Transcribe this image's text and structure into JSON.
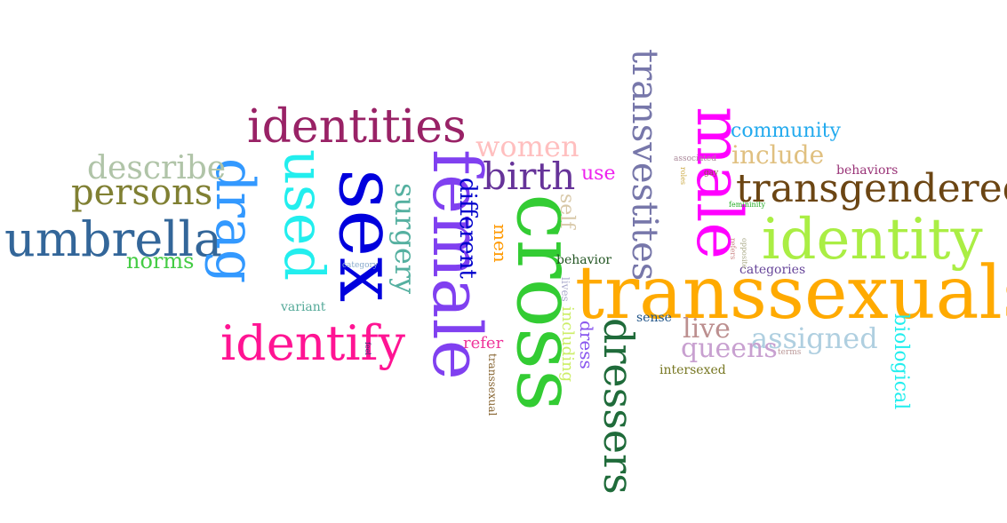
{
  "word_cloud": {
    "words": [
      {
        "text": "transsexuals",
        "color": "#FFAA00",
        "orientation": "horizontal"
      },
      {
        "text": "cross",
        "color": "#33CC33",
        "orientation": "vertical"
      },
      {
        "text": "female",
        "color": "#8040F0",
        "orientation": "vertical"
      },
      {
        "text": "sex",
        "color": "#0000DD",
        "orientation": "vertical"
      },
      {
        "text": "identity",
        "color": "#AAEE44",
        "orientation": "horizontal"
      },
      {
        "text": "male",
        "color": "#FF00FF",
        "orientation": "vertical"
      },
      {
        "text": "used",
        "color": "#22EEEE",
        "orientation": "vertical"
      },
      {
        "text": "umbrella",
        "color": "#336699",
        "orientation": "horizontal"
      },
      {
        "text": "identify",
        "color": "#FF1493",
        "orientation": "horizontal"
      },
      {
        "text": "drag",
        "color": "#3399FF",
        "orientation": "vertical"
      },
      {
        "text": "dressers",
        "color": "#1F6B3A",
        "orientation": "vertical"
      },
      {
        "text": "transvestites",
        "color": "#7777AA",
        "orientation": "vertical"
      },
      {
        "text": "identities",
        "color": "#992266",
        "orientation": "horizontal"
      },
      {
        "text": "transgendered",
        "color": "#6B4513",
        "orientation": "horizontal"
      },
      {
        "text": "persons",
        "color": "#808033",
        "orientation": "horizontal"
      },
      {
        "text": "birth",
        "color": "#663399",
        "orientation": "horizontal"
      },
      {
        "text": "describe",
        "color": "#B0C4A8",
        "orientation": "horizontal"
      },
      {
        "text": "surgery",
        "color": "#55B0A0",
        "orientation": "vertical"
      },
      {
        "text": "women",
        "color": "#FFBFBF",
        "orientation": "horizontal"
      },
      {
        "text": "different",
        "color": "#0000CC",
        "orientation": "vertical"
      },
      {
        "text": "assigned",
        "color": "#AFCFE0",
        "orientation": "horizontal"
      },
      {
        "text": "queens",
        "color": "#C8A0D0",
        "orientation": "horizontal"
      },
      {
        "text": "live",
        "color": "#BC8F8F",
        "orientation": "horizontal"
      },
      {
        "text": "include",
        "color": "#E0C080",
        "orientation": "horizontal"
      },
      {
        "text": "community",
        "color": "#22AAEE",
        "orientation": "horizontal"
      },
      {
        "text": "biological",
        "color": "#22EEEE",
        "orientation": "vertical"
      },
      {
        "text": "use",
        "color": "#EE22EE",
        "orientation": "horizontal"
      },
      {
        "text": "self",
        "color": "#D8C8A8",
        "orientation": "vertical"
      },
      {
        "text": "men",
        "color": "#FF9900",
        "orientation": "vertical"
      },
      {
        "text": "norms",
        "color": "#44CC44",
        "orientation": "horizontal"
      },
      {
        "text": "dress",
        "color": "#8855EE",
        "orientation": "vertical"
      },
      {
        "text": "including",
        "color": "#CCEE66",
        "orientation": "vertical"
      },
      {
        "text": "refer",
        "color": "#EE3399",
        "orientation": "horizontal"
      },
      {
        "text": "behaviors",
        "color": "#993377",
        "orientation": "horizontal"
      },
      {
        "text": "behavior",
        "color": "#225522",
        "orientation": "horizontal"
      },
      {
        "text": "categories",
        "color": "#664499",
        "orientation": "horizontal"
      },
      {
        "text": "intersexed",
        "color": "#777722",
        "orientation": "horizontal"
      },
      {
        "text": "sense",
        "color": "#225588",
        "orientation": "horizontal"
      },
      {
        "text": "variant",
        "color": "#55AA99",
        "orientation": "horizontal"
      },
      {
        "text": "transsexual",
        "color": "#886633",
        "orientation": "vertical"
      },
      {
        "text": "lives",
        "color": "#AAAACC",
        "orientation": "vertical"
      },
      {
        "text": "associated",
        "color": "#AA8899",
        "orientation": "horizontal"
      },
      {
        "text": "gay",
        "color": "#885544",
        "orientation": "horizontal"
      },
      {
        "text": "femininity",
        "color": "#22AA22",
        "orientation": "horizontal"
      },
      {
        "text": "roles",
        "color": "#CCAA44",
        "orientation": "vertical"
      },
      {
        "text": "refers",
        "color": "#CC8888",
        "orientation": "vertical"
      },
      {
        "text": "opposite",
        "color": "#AAAA88",
        "orientation": "vertical"
      },
      {
        "text": "terms",
        "color": "#BB9999",
        "orientation": "horizontal"
      },
      {
        "text": "category",
        "color": "#88AACC",
        "orientation": "horizontal"
      },
      {
        "text": "feel",
        "color": "#333377",
        "orientation": "vertical"
      }
    ]
  }
}
